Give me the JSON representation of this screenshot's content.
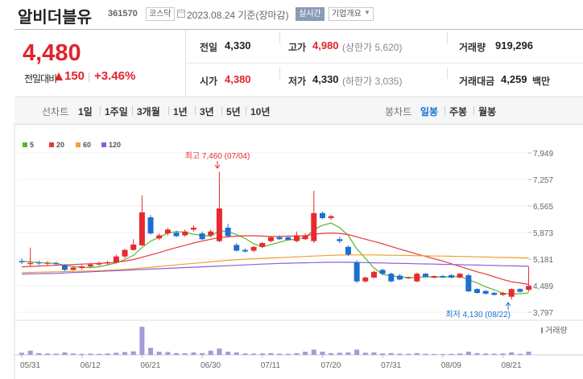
{
  "header": {
    "name": "알비더블유",
    "code": "361570",
    "market": "코스닥",
    "date": "2023.08.24 기준(장마감)",
    "realtime": "실시간",
    "company": "기업개요"
  },
  "price": {
    "current": "4,480",
    "change_label": "전일대비",
    "change": "150",
    "rate": "+3.46%",
    "color": "#e0242d"
  },
  "info": [
    {
      "label": "전일",
      "value": "4,330"
    },
    {
      "label": "고가",
      "value": "4,980",
      "note": "(상한가 5,620)",
      "color": "#e0242d"
    },
    {
      "label": "거래량",
      "value": "919,296"
    },
    {
      "label": "시가",
      "value": "4,380",
      "color": "#e0242d"
    },
    {
      "label": "저가",
      "value": "4,330",
      "note": "(하한가 3,035)"
    },
    {
      "label": "거래대금",
      "value": "4,259",
      "unit": "백만"
    }
  ],
  "tabs": {
    "line_label": "선차트",
    "line_periods": [
      "1일",
      "1주일",
      "3개월",
      "1년",
      "3년",
      "5년",
      "10년"
    ],
    "candle_label": "봉차트",
    "candle_periods": [
      "일봉",
      "주봉",
      "월봉"
    ],
    "selected": "일봉"
  },
  "chart_data": {
    "type": "candlestick",
    "up_color": "#e8292f",
    "down_color": "#1e6ed0",
    "volume_color": "#a898d8",
    "ylim": [
      3797,
      7949
    ],
    "yticks": [
      {
        "value": 3797,
        "label": "3,797"
      },
      {
        "value": 4489,
        "label": "4,489"
      },
      {
        "value": 5181,
        "label": "5,181"
      },
      {
        "value": 5873,
        "label": "5,873"
      },
      {
        "value": 6565,
        "label": "6,565"
      },
      {
        "value": 7257,
        "label": "7,257"
      },
      {
        "value": 7949,
        "label": "7,949"
      }
    ],
    "categories": [
      "05/31",
      null,
      null,
      null,
      null,
      null,
      null,
      "06/12",
      null,
      null,
      null,
      null,
      null,
      null,
      "06/21",
      null,
      null,
      null,
      null,
      null,
      null,
      "06/30",
      null,
      null,
      null,
      null,
      null,
      null,
      "07/11",
      null,
      null,
      null,
      null,
      null,
      null,
      "07/20",
      null,
      null,
      null,
      null,
      null,
      null,
      "07/31",
      null,
      null,
      null,
      null,
      null,
      null,
      "08/09",
      null,
      null,
      null,
      null,
      null,
      null,
      "08/21",
      null,
      null,
      null
    ],
    "candles": [
      {
        "open": 5130,
        "high": 5200,
        "low": 5050,
        "close": 5100
      },
      {
        "open": 5050,
        "high": 5480,
        "low": 5000,
        "close": 5080
      },
      {
        "open": 5090,
        "high": 5140,
        "low": 5030,
        "close": 5070
      },
      {
        "open": 5070,
        "high": 5130,
        "low": 5010,
        "close": 5080
      },
      {
        "open": 5080,
        "high": 5120,
        "low": 5020,
        "close": 5050
      },
      {
        "open": 5020,
        "high": 5050,
        "low": 4870,
        "close": 4900
      },
      {
        "open": 4900,
        "high": 5000,
        "low": 4880,
        "close": 4960
      },
      {
        "open": 4950,
        "high": 5030,
        "low": 4900,
        "close": 4990
      },
      {
        "open": 4990,
        "high": 5080,
        "low": 4950,
        "close": 5040
      },
      {
        "open": 5040,
        "high": 5120,
        "low": 5000,
        "close": 5070
      },
      {
        "open": 5070,
        "high": 5140,
        "low": 5020,
        "close": 5100
      },
      {
        "open": 5100,
        "high": 5300,
        "low": 5080,
        "close": 5250
      },
      {
        "open": 5250,
        "high": 5450,
        "low": 5200,
        "close": 5420
      },
      {
        "open": 5420,
        "high": 5700,
        "low": 5400,
        "close": 5560
      },
      {
        "open": 5540,
        "high": 6840,
        "low": 5520,
        "close": 6400
      },
      {
        "open": 6270,
        "high": 6330,
        "low": 5820,
        "close": 5850
      },
      {
        "open": 5720,
        "high": 5850,
        "low": 5680,
        "close": 5800
      },
      {
        "open": 5850,
        "high": 6000,
        "low": 5800,
        "close": 5950
      },
      {
        "open": 5870,
        "high": 5920,
        "low": 5750,
        "close": 5780
      },
      {
        "open": 5800,
        "high": 5950,
        "low": 5760,
        "close": 5900
      },
      {
        "open": 5950,
        "high": 6060,
        "low": 5900,
        "close": 6000
      },
      {
        "open": 5850,
        "high": 5900,
        "low": 5680,
        "close": 5700
      },
      {
        "open": 5800,
        "high": 5950,
        "low": 5750,
        "close": 5900
      },
      {
        "open": 5650,
        "high": 7460,
        "low": 5620,
        "close": 6500
      },
      {
        "open": 6000,
        "high": 6100,
        "low": 5760,
        "close": 5780
      },
      {
        "open": 5550,
        "high": 5600,
        "low": 5380,
        "close": 5400
      },
      {
        "open": 5420,
        "high": 5460,
        "low": 5350,
        "close": 5380
      },
      {
        "open": 5400,
        "high": 5520,
        "low": 5360,
        "close": 5500
      },
      {
        "open": 5500,
        "high": 5620,
        "low": 5470,
        "close": 5600
      },
      {
        "open": 5650,
        "high": 5780,
        "low": 5620,
        "close": 5750
      },
      {
        "open": 5750,
        "high": 5800,
        "low": 5680,
        "close": 5700
      },
      {
        "open": 5750,
        "high": 5790,
        "low": 5660,
        "close": 5680
      },
      {
        "open": 5650,
        "high": 5900,
        "low": 5620,
        "close": 5800
      },
      {
        "open": 5700,
        "high": 5850,
        "low": 5680,
        "close": 5800
      },
      {
        "open": 5650,
        "high": 6960,
        "low": 5600,
        "close": 6380
      },
      {
        "open": 6380,
        "high": 6420,
        "low": 6220,
        "close": 6250
      },
      {
        "open": 6250,
        "high": 6330,
        "low": 6200,
        "close": 6300
      },
      {
        "open": 5700,
        "high": 5760,
        "low": 5600,
        "close": 5650
      },
      {
        "open": 5500,
        "high": 5540,
        "low": 5260,
        "close": 5300
      },
      {
        "open": 5100,
        "high": 5150,
        "low": 4560,
        "close": 4600
      },
      {
        "open": 4600,
        "high": 4730,
        "low": 4570,
        "close": 4700
      },
      {
        "open": 4700,
        "high": 4880,
        "low": 4680,
        "close": 4850
      },
      {
        "open": 4900,
        "high": 4930,
        "low": 4780,
        "close": 4800
      },
      {
        "open": 4800,
        "high": 4830,
        "low": 4580,
        "close": 4600
      },
      {
        "open": 4750,
        "high": 4790,
        "low": 4630,
        "close": 4650
      },
      {
        "open": 4680,
        "high": 4730,
        "low": 4660,
        "close": 4700
      },
      {
        "open": 4600,
        "high": 4830,
        "low": 4580,
        "close": 4800
      },
      {
        "open": 4800,
        "high": 4820,
        "low": 4700,
        "close": 4720
      },
      {
        "open": 4700,
        "high": 4760,
        "low": 4680,
        "close": 4740
      },
      {
        "open": 4740,
        "high": 4770,
        "low": 4690,
        "close": 4700
      },
      {
        "open": 4760,
        "high": 4790,
        "low": 4680,
        "close": 4700
      },
      {
        "open": 4700,
        "high": 4820,
        "low": 4680,
        "close": 4800
      },
      {
        "open": 4760,
        "high": 4800,
        "low": 4320,
        "close": 4340
      },
      {
        "open": 4400,
        "high": 4420,
        "low": 4280,
        "close": 4300
      },
      {
        "open": 4350,
        "high": 4370,
        "low": 4260,
        "close": 4280
      },
      {
        "open": 4300,
        "high": 4320,
        "low": 4230,
        "close": 4250
      },
      {
        "open": 4250,
        "high": 4330,
        "low": 4220,
        "close": 4300
      },
      {
        "open": 4200,
        "high": 4420,
        "low": 4130,
        "close": 4400
      },
      {
        "open": 4400,
        "high": 4420,
        "low": 4310,
        "close": 4330
      },
      {
        "open": 4380,
        "high": 4980,
        "low": 4330,
        "close": 4480
      }
    ],
    "series": [
      {
        "name": "5",
        "color": "#5cb531",
        "values": [
          5120,
          5110,
          5090,
          5080,
          5070,
          5020,
          4990,
          4970,
          4960,
          4980,
          5030,
          5080,
          5170,
          5280,
          5480,
          5650,
          5750,
          5860,
          5900,
          5880,
          5830,
          5800,
          5780,
          5920,
          5900,
          5820,
          5720,
          5580,
          5500,
          5560,
          5620,
          5680,
          5700,
          5740,
          5950,
          6060,
          6120,
          6000,
          5800,
          5450,
          5200,
          4950,
          4780,
          4740,
          4720,
          4700,
          4700,
          4720,
          4710,
          4720,
          4720,
          4730,
          4640,
          4560,
          4460,
          4380,
          4290,
          4270,
          4280,
          4300
        ]
      },
      {
        "name": "20",
        "color": "#e8383d",
        "values": [
          4980,
          4990,
          5000,
          5010,
          5020,
          5030,
          5040,
          5050,
          5060,
          5070,
          5080,
          5100,
          5130,
          5170,
          5230,
          5290,
          5350,
          5420,
          5480,
          5540,
          5600,
          5650,
          5700,
          5740,
          5760,
          5780,
          5790,
          5790,
          5780,
          5770,
          5770,
          5780,
          5780,
          5790,
          5830,
          5850,
          5860,
          5850,
          5820,
          5760,
          5700,
          5640,
          5580,
          5510,
          5440,
          5380,
          5310,
          5250,
          5190,
          5130,
          5060,
          4990,
          4920,
          4850,
          4790,
          4720,
          4650,
          4590,
          4560,
          4520
        ]
      },
      {
        "name": "60",
        "color": "#f0a030",
        "values": [
          4830,
          4835,
          4840,
          4845,
          4850,
          4855,
          4860,
          4865,
          4870,
          4880,
          4890,
          4900,
          4915,
          4930,
          4950,
          4970,
          4990,
          5010,
          5030,
          5050,
          5070,
          5090,
          5110,
          5130,
          5150,
          5165,
          5180,
          5190,
          5200,
          5210,
          5220,
          5230,
          5240,
          5250,
          5260,
          5270,
          5280,
          5285,
          5290,
          5290,
          5290,
          5290,
          5285,
          5280,
          5280,
          5275,
          5270,
          5265,
          5260,
          5260,
          5255,
          5250,
          5245,
          5240,
          5235,
          5230,
          5225,
          5220,
          5215,
          5210
        ]
      },
      {
        "name": "120",
        "color": "#8c5fd6",
        "values": [
          4790,
          4795,
          4800,
          4805,
          4810,
          4820,
          4830,
          4840,
          4850,
          4860,
          4870,
          4880,
          4890,
          4900,
          4910,
          4920,
          4930,
          4940,
          4950,
          4960,
          4970,
          4980,
          4990,
          5000,
          5010,
          5020,
          5030,
          5040,
          5050,
          5060,
          5070,
          5075,
          5080,
          5085,
          5090,
          5095,
          5100,
          5100,
          5100,
          5095,
          5090,
          5085,
          5080,
          5075,
          5070,
          5065,
          5060,
          5055,
          5050,
          5045,
          5040,
          5035,
          5030,
          5025,
          5020,
          5015,
          5010,
          5005,
          5000,
          4995
        ]
      }
    ],
    "volume_label": "거래량",
    "volume_ylim": [
      0,
      8500000
    ],
    "volume": [
      600000,
      1200000,
      500000,
      400000,
      350000,
      700000,
      400000,
      300000,
      350000,
      300000,
      400000,
      600000,
      800000,
      1000000,
      8000000,
      2000000,
      900000,
      800000,
      500000,
      450000,
      700000,
      500000,
      1200000,
      1800000,
      900000,
      700000,
      400000,
      350000,
      400000,
      500000,
      350000,
      300000,
      500000,
      900000,
      1500000,
      900000,
      500000,
      600000,
      700000,
      1500000,
      600000,
      700000,
      400000,
      500000,
      350000,
      300000,
      500000,
      300000,
      250000,
      250000,
      300000,
      400000,
      900000,
      500000,
      400000,
      350000,
      400000,
      700000,
      300000,
      919296
    ],
    "max_label": "최고 7,460 (07/04)",
    "min_label": "최저 4,130 (08/22)"
  }
}
